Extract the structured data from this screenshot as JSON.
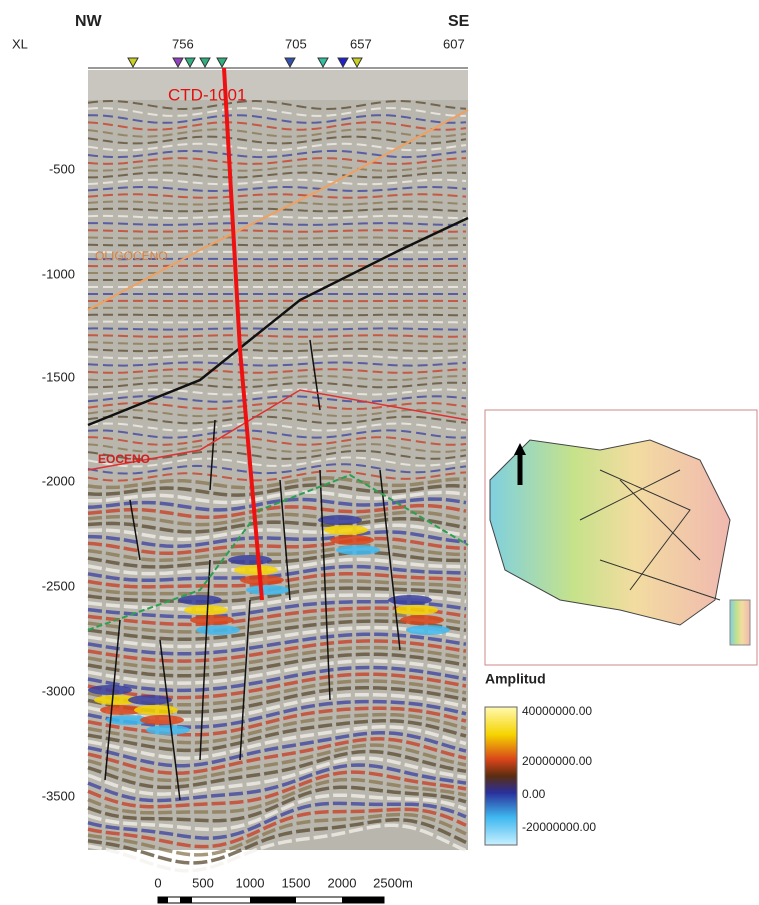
{
  "header": {
    "left": "NW",
    "right": "SE",
    "axis_label": "XL",
    "xl_labels": [
      "756",
      "705",
      "657",
      "607"
    ]
  },
  "well": "CTD-1001",
  "depth_labels": [
    "-500",
    "-1000",
    "-1500",
    "-2000",
    "-2500",
    "-3000",
    "-3500"
  ],
  "horizons": [
    "OLIGOCENO",
    "EOCENO"
  ],
  "scale_bar": [
    "0",
    "500",
    "1000",
    "1500",
    "2000",
    "2500m"
  ],
  "legend": {
    "title": "Amplitud",
    "labels": [
      "40000000.00",
      "20000000.00",
      "0.00",
      "-20000000.00"
    ]
  }
}
